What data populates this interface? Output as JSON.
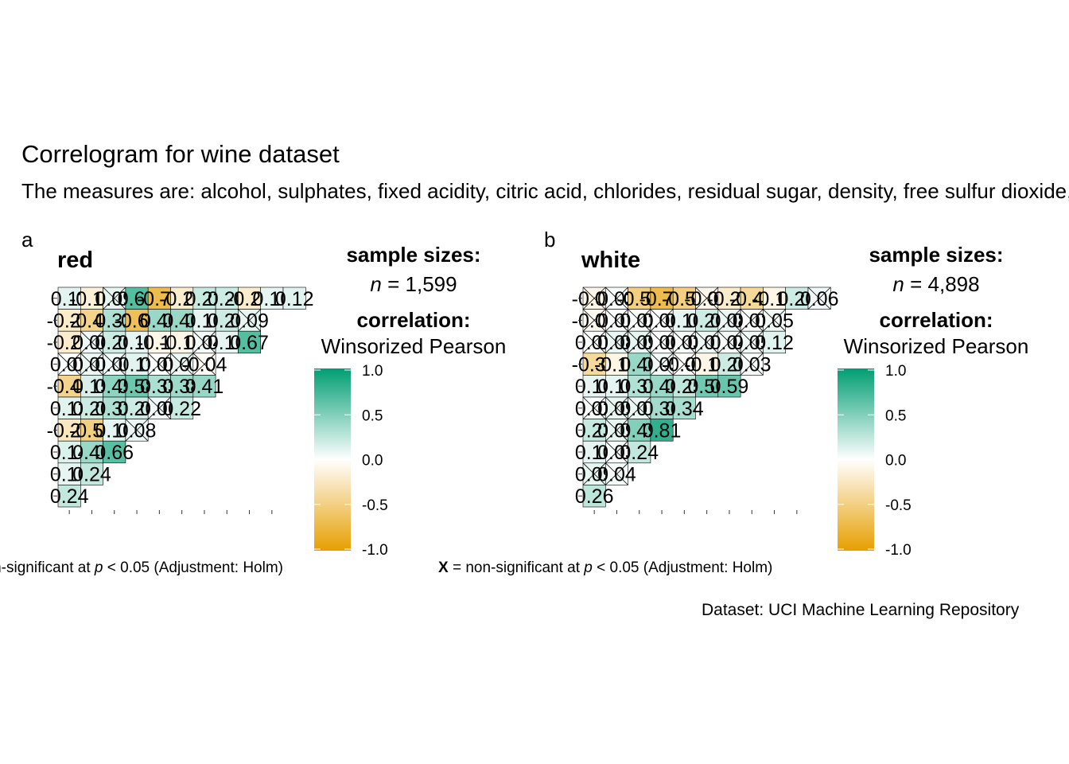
{
  "title": "Correlogram for wine dataset",
  "subtitle": "The measures are: alcohol, sulphates, fixed acidity, citric acid, chlorides, residual sugar, density, free sulfur dioxide, total sulfur dioxide, volatile acidity, pH",
  "source": "Dataset: UCI Machine Learning Repository",
  "chart_data": [
    {
      "type": "heatmap",
      "panel_tag": "a",
      "title": "red",
      "sample_size_title": "sample sizes:",
      "sample_size_prefix": "n",
      "sample_size_value": "= 1,599",
      "correlation_title": "correlation:",
      "correlation_method": "Winsorized Pearson",
      "legend": {
        "ticks": [
          "1.0",
          "0.5",
          "0.0",
          "-0.5",
          "-1.0"
        ],
        "range": [
          -1,
          1
        ],
        "low_color": "#E69F00",
        "mid_color": "#FFFFFF",
        "high_color": "#009E73"
      },
      "caption_prefix": "X",
      "caption_mid": "= non-significant at",
      "caption_p": "p",
      "caption_suffix": "< 0.05 (Adjustment: Holm)",
      "rows": [
        [
          "0.11",
          "-0.15",
          "0.09",
          "0.67",
          "-0.70",
          "-0.20",
          "0.22",
          "0.20",
          "-0.20",
          "0.10",
          "0.12"
        ],
        [
          "-0.21",
          "-0.46",
          "0.32",
          "-0.66",
          "0.40",
          "0.40",
          "0.10",
          "0.20",
          "0.09"
        ],
        [
          "-0.20",
          "0.06",
          "0.20",
          "0.10",
          "-0.10",
          "-0.10",
          "0.04",
          "0.10",
          "0.67"
        ],
        [
          "0.01",
          "0.07",
          "0.06",
          "0.11",
          "0.01",
          "0.07",
          "-0.04"
        ],
        [
          "-0.45",
          "0.15",
          "0.45",
          "0.58",
          "0.33",
          "0.38",
          "0.41"
        ],
        [
          "0.12",
          "0.20",
          "0.32",
          "0.20",
          "0.06",
          "0.22"
        ],
        [
          "-0.25",
          "-0.50",
          "0.10",
          "0.08"
        ],
        [
          "0.14",
          "0.40",
          "0.66"
        ],
        [
          "0.10",
          "0.24"
        ],
        [
          "0.24"
        ]
      ]
    },
    {
      "type": "heatmap",
      "panel_tag": "b",
      "title": "white",
      "sample_size_title": "sample sizes:",
      "sample_size_prefix": "n",
      "sample_size_value": "= 4,898",
      "correlation_title": "correlation:",
      "correlation_method": "Winsorized Pearson",
      "legend": {
        "ticks": [
          "1.0",
          "0.5",
          "0.0",
          "-0.5",
          "-1.0"
        ],
        "range": [
          -1,
          1
        ],
        "low_color": "#E69F00",
        "mid_color": "#FFFFFF",
        "high_color": "#009E73"
      },
      "caption_prefix": "X",
      "caption_mid": "= non-significant at",
      "caption_p": "p",
      "caption_suffix": "< 0.05 (Adjustment: Holm)",
      "rows": [
        [
          "-0.09",
          "0.03",
          "-0.50",
          "-0.70",
          "-0.50",
          "-0.09",
          "-0.20",
          "-0.40",
          "-0.10",
          "0.20",
          "0.06"
        ],
        [
          "-0.05",
          "0.01",
          "0.02",
          "0.00",
          "0.10",
          "0.20",
          "0.08",
          "0.01",
          "0.05"
        ],
        [
          "0.01",
          "0.08",
          "0.09",
          "0.00",
          "0.03",
          "0.07",
          "0.04",
          "0.05",
          "0.12"
        ],
        [
          "-0.39",
          "-0.10",
          "0.40",
          "0.05",
          "-0.02",
          "-0.10",
          "0.20",
          "0.03"
        ],
        [
          "0.10",
          "0.10",
          "0.31",
          "0.40",
          "0.25",
          "0.56",
          "0.59"
        ],
        [
          "0.02",
          "0.09",
          "0.07",
          "0.36",
          "0.34"
        ],
        [
          "0.23",
          "0.09",
          "0.49",
          "0.81"
        ],
        [
          "0.10",
          "0.03",
          "0.24"
        ],
        [
          "0.09",
          "0.04"
        ],
        [
          "0.26"
        ]
      ]
    }
  ]
}
